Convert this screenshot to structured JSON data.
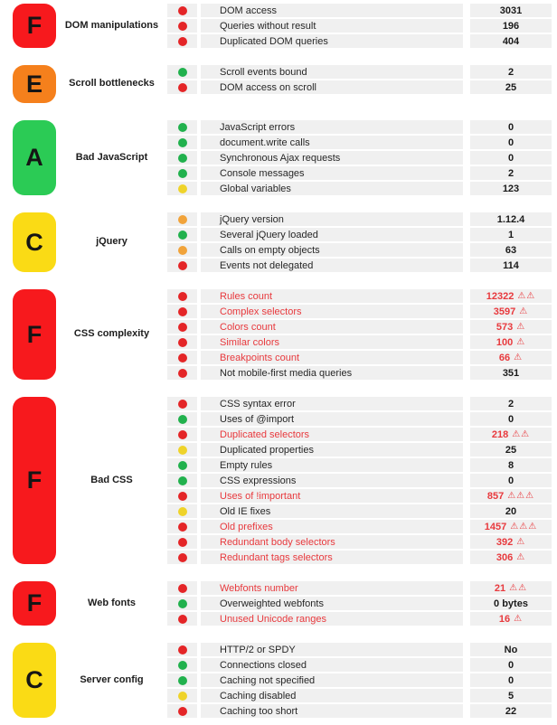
{
  "report": {
    "colors": {
      "badge_red": "#f7191d",
      "badge_orange": "#f5801c",
      "badge_green": "#2bcb55",
      "badge_yellow": "#fadb15",
      "dot_red": "#e42527",
      "dot_green": "#21b14d",
      "dot_yellow": "#efd32a",
      "dot_orange": "#f1a33a",
      "flag_text": "#e8393d",
      "row_bg": "#f0f0f0"
    },
    "warning_icon": "⚠",
    "sections": [
      {
        "grade": "F",
        "grade_color": "badge_red",
        "category": "DOM manipulations",
        "rows": [
          {
            "dot": "red",
            "label": "DOM access",
            "value": "3031",
            "warnings": 0,
            "flagged": false
          },
          {
            "dot": "red",
            "label": "Queries without result",
            "value": "196",
            "warnings": 0,
            "flagged": false
          },
          {
            "dot": "red",
            "label": "Duplicated DOM queries",
            "value": "404",
            "warnings": 0,
            "flagged": false
          }
        ]
      },
      {
        "grade": "E",
        "grade_color": "badge_orange",
        "category": "Scroll bottlenecks",
        "rows": [
          {
            "dot": "green",
            "label": "Scroll events bound",
            "value": "2",
            "warnings": 0,
            "flagged": false
          },
          {
            "dot": "red",
            "label": "DOM access on scroll",
            "value": "25",
            "warnings": 0,
            "flagged": false
          }
        ]
      },
      {
        "grade": "A",
        "grade_color": "badge_green",
        "category": "Bad JavaScript",
        "rows": [
          {
            "dot": "green",
            "label": "JavaScript errors",
            "value": "0",
            "warnings": 0,
            "flagged": false
          },
          {
            "dot": "green",
            "label": "document.write calls",
            "value": "0",
            "warnings": 0,
            "flagged": false
          },
          {
            "dot": "green",
            "label": "Synchronous Ajax requests",
            "value": "0",
            "warnings": 0,
            "flagged": false
          },
          {
            "dot": "green",
            "label": "Console messages",
            "value": "2",
            "warnings": 0,
            "flagged": false
          },
          {
            "dot": "yellow",
            "label": "Global variables",
            "value": "123",
            "warnings": 0,
            "flagged": false
          }
        ]
      },
      {
        "grade": "C",
        "grade_color": "badge_yellow",
        "category": "jQuery",
        "rows": [
          {
            "dot": "orange",
            "label": "jQuery version",
            "value": "1.12.4",
            "warnings": 0,
            "flagged": false
          },
          {
            "dot": "green",
            "label": "Several jQuery loaded",
            "value": "1",
            "warnings": 0,
            "flagged": false
          },
          {
            "dot": "orange",
            "label": "Calls on empty objects",
            "value": "63",
            "warnings": 0,
            "flagged": false
          },
          {
            "dot": "red",
            "label": "Events not delegated",
            "value": "114",
            "warnings": 0,
            "flagged": false
          }
        ]
      },
      {
        "grade": "F",
        "grade_color": "badge_red",
        "category": "CSS complexity",
        "rows": [
          {
            "dot": "red",
            "label": "Rules count",
            "value": "12322",
            "warnings": 2,
            "flagged": true
          },
          {
            "dot": "red",
            "label": "Complex selectors",
            "value": "3597",
            "warnings": 1,
            "flagged": true
          },
          {
            "dot": "red",
            "label": "Colors count",
            "value": "573",
            "warnings": 1,
            "flagged": true
          },
          {
            "dot": "red",
            "label": "Similar colors",
            "value": "100",
            "warnings": 1,
            "flagged": true
          },
          {
            "dot": "red",
            "label": "Breakpoints count",
            "value": "66",
            "warnings": 1,
            "flagged": true
          },
          {
            "dot": "red",
            "label": "Not mobile-first media queries",
            "value": "351",
            "warnings": 0,
            "flagged": false
          }
        ]
      },
      {
        "grade": "F",
        "grade_color": "badge_red",
        "category": "Bad CSS",
        "rows": [
          {
            "dot": "red",
            "label": "CSS syntax error",
            "value": "2",
            "warnings": 0,
            "flagged": false
          },
          {
            "dot": "green",
            "label": "Uses of @import",
            "value": "0",
            "warnings": 0,
            "flagged": false
          },
          {
            "dot": "red",
            "label": "Duplicated selectors",
            "value": "218",
            "warnings": 2,
            "flagged": true
          },
          {
            "dot": "yellow",
            "label": "Duplicated properties",
            "value": "25",
            "warnings": 0,
            "flagged": false
          },
          {
            "dot": "green",
            "label": "Empty rules",
            "value": "8",
            "warnings": 0,
            "flagged": false
          },
          {
            "dot": "green",
            "label": "CSS expressions",
            "value": "0",
            "warnings": 0,
            "flagged": false
          },
          {
            "dot": "red",
            "label": "Uses of !important",
            "value": "857",
            "warnings": 3,
            "flagged": true
          },
          {
            "dot": "yellow",
            "label": "Old IE fixes",
            "value": "20",
            "warnings": 0,
            "flagged": false
          },
          {
            "dot": "red",
            "label": "Old prefixes",
            "value": "1457",
            "warnings": 3,
            "flagged": true
          },
          {
            "dot": "red",
            "label": "Redundant body selectors",
            "value": "392",
            "warnings": 1,
            "flagged": true
          },
          {
            "dot": "red",
            "label": "Redundant tags selectors",
            "value": "306",
            "warnings": 1,
            "flagged": true
          }
        ]
      },
      {
        "grade": "F",
        "grade_color": "badge_red",
        "category": "Web fonts",
        "rows": [
          {
            "dot": "red",
            "label": "Webfonts number",
            "value": "21",
            "warnings": 2,
            "flagged": true
          },
          {
            "dot": "green",
            "label": "Overweighted webfonts",
            "value": "0 bytes",
            "warnings": 0,
            "flagged": false
          },
          {
            "dot": "red",
            "label": "Unused Unicode ranges",
            "value": "16",
            "warnings": 1,
            "flagged": true
          }
        ]
      },
      {
        "grade": "C",
        "grade_color": "badge_yellow",
        "category": "Server config",
        "rows": [
          {
            "dot": "red",
            "label": "HTTP/2 or SPDY",
            "value": "No",
            "warnings": 0,
            "flagged": false
          },
          {
            "dot": "green",
            "label": "Connections closed",
            "value": "0",
            "warnings": 0,
            "flagged": false
          },
          {
            "dot": "green",
            "label": "Caching not specified",
            "value": "0",
            "warnings": 0,
            "flagged": false
          },
          {
            "dot": "yellow",
            "label": "Caching disabled",
            "value": "5",
            "warnings": 0,
            "flagged": false
          },
          {
            "dot": "red",
            "label": "Caching too short",
            "value": "22",
            "warnings": 0,
            "flagged": false
          }
        ]
      }
    ]
  }
}
